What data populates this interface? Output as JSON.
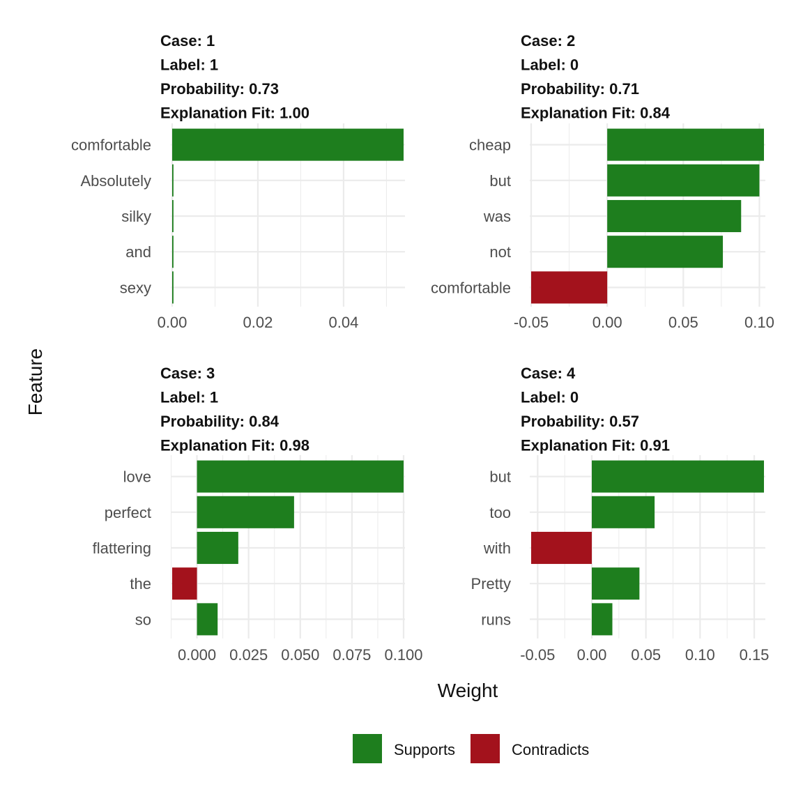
{
  "colors": {
    "supports": "#1e7e1e",
    "contradicts": "#a3121c",
    "grid": "#ebebeb"
  },
  "axis_titles": {
    "x": "Weight",
    "y": "Feature"
  },
  "legend": {
    "position": "bottom",
    "items": [
      {
        "key": "supports",
        "label": "Supports"
      },
      {
        "key": "contradicts",
        "label": "Contradicts"
      }
    ]
  },
  "chart_data": [
    {
      "type": "bar",
      "orientation": "horizontal",
      "header": [
        "Case: 1",
        "Label: 1",
        "Probability: 0.73",
        "Explanation Fit: 1.00"
      ],
      "categories": [
        "comfortable",
        "Absolutely",
        "silky",
        "and",
        "sexy"
      ],
      "values": [
        0.054,
        0.0003,
        0.0003,
        0.0003,
        0.0003
      ],
      "xlim": [
        0,
        0.054
      ],
      "ticks": [
        0,
        0.02,
        0.04
      ],
      "tick_labels": [
        "0.00",
        "0.02",
        "0.04"
      ],
      "minor_ticks": [
        0.01,
        0.03,
        0.05
      ]
    },
    {
      "type": "bar",
      "orientation": "horizontal",
      "header": [
        "Case: 2",
        "Label: 0",
        "Probability: 0.71",
        "Explanation Fit: 0.84"
      ],
      "categories": [
        "cheap",
        "but",
        "was",
        "not",
        "comfortable"
      ],
      "values": [
        0.103,
        0.1,
        0.088,
        0.076,
        -0.05
      ],
      "xlim": [
        -0.05,
        0.103
      ],
      "ticks": [
        -0.05,
        0,
        0.05,
        0.1
      ],
      "tick_labels": [
        "-0.05",
        "0.00",
        "0.05",
        "0.10"
      ],
      "minor_ticks": [
        -0.025,
        0.025,
        0.075
      ]
    },
    {
      "type": "bar",
      "orientation": "horizontal",
      "header": [
        "Case: 3",
        "Label: 1",
        "Probability: 0.84",
        "Explanation Fit: 0.98"
      ],
      "categories": [
        "love",
        "perfect",
        "flattering",
        "the",
        "so"
      ],
      "values": [
        0.1,
        0.047,
        0.02,
        -0.012,
        0.01
      ],
      "xlim": [
        -0.012,
        0.1
      ],
      "ticks": [
        0,
        0.025,
        0.05,
        0.075,
        0.1
      ],
      "tick_labels": [
        "0.000",
        "0.025",
        "0.050",
        "0.075",
        "0.100"
      ],
      "minor_ticks": [
        -0.0125,
        0.0125,
        0.0375,
        0.0625,
        0.0875
      ]
    },
    {
      "type": "bar",
      "orientation": "horizontal",
      "header": [
        "Case: 4",
        "Label: 0",
        "Probability: 0.57",
        "Explanation Fit: 0.91"
      ],
      "categories": [
        "but",
        "too",
        "with",
        "Pretty",
        "runs"
      ],
      "values": [
        0.159,
        0.058,
        -0.056,
        0.044,
        0.019
      ],
      "xlim": [
        -0.056,
        0.159
      ],
      "ticks": [
        -0.05,
        0,
        0.05,
        0.1,
        0.15
      ],
      "tick_labels": [
        "-0.05",
        "0.00",
        "0.05",
        "0.10",
        "0.15"
      ],
      "minor_ticks": [
        -0.025,
        0.025,
        0.075,
        0.125
      ]
    }
  ]
}
